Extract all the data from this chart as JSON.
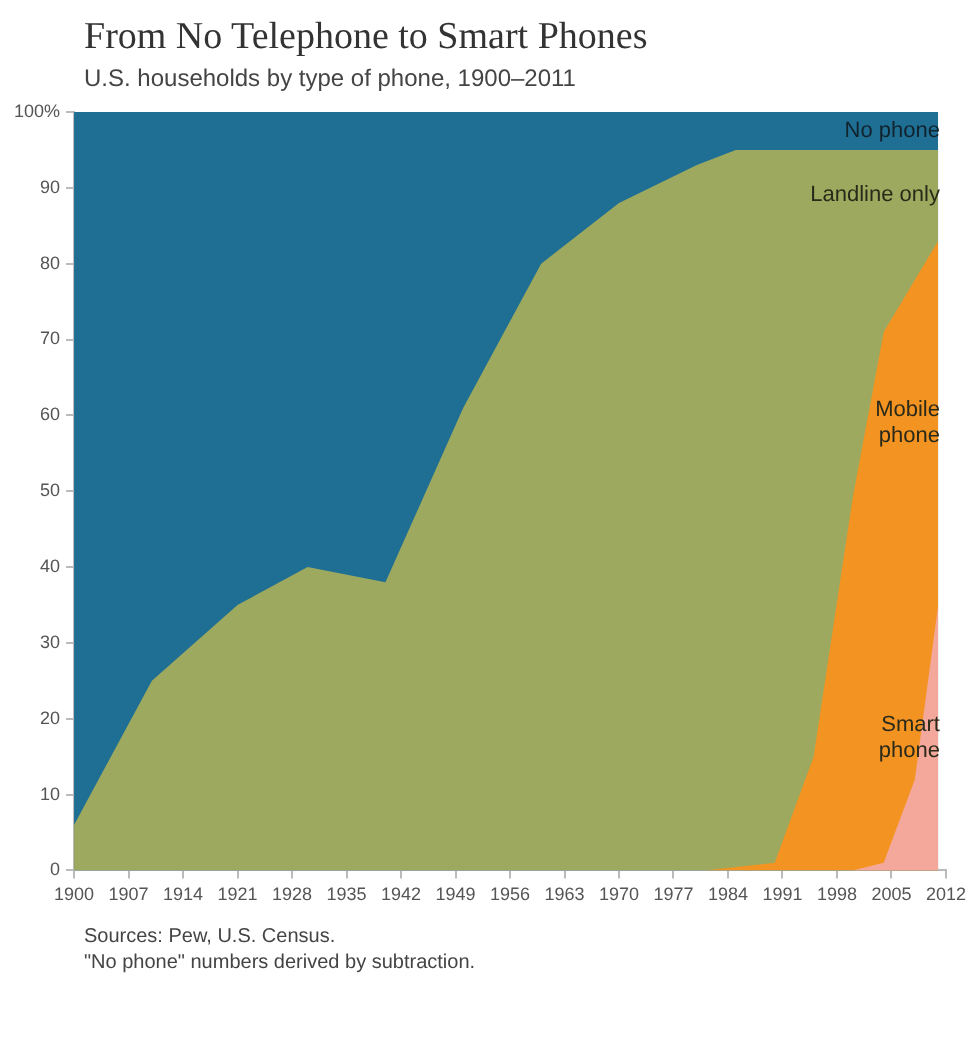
{
  "chart_data": {
    "type": "area",
    "title": "From No Telephone to Smart Phones",
    "subtitle": "U.S. households by type of phone, 1900–2011",
    "xlim": [
      1900,
      2012
    ],
    "xticks": [
      1900,
      1907,
      1914,
      1921,
      1928,
      1935,
      1942,
      1949,
      1956,
      1963,
      1970,
      1977,
      1984,
      1991,
      1998,
      2005,
      2012
    ],
    "ylim": [
      0,
      100
    ],
    "yticks": [
      0,
      10,
      20,
      30,
      40,
      50,
      60,
      70,
      80,
      90,
      {
        "value": 100,
        "label": "100%"
      }
    ],
    "grid": false,
    "legend": false,
    "series": [
      {
        "name": "No phone",
        "color": "#1f6e94",
        "x": [
          1900,
          2011
        ],
        "values": [
          100,
          100
        ]
      },
      {
        "name": "Landline only",
        "color": "#9ca95f",
        "x": [
          1900,
          1910,
          1921,
          1930,
          1940,
          1950,
          1960,
          1970,
          1980,
          1985,
          2011
        ],
        "values": [
          6,
          25,
          35,
          40,
          38,
          61,
          80,
          88,
          93,
          95,
          95
        ]
      },
      {
        "name": "Mobile phone",
        "color": "#f39321",
        "x": [
          1981,
          1990,
          1995,
          2000,
          2004,
          2011
        ],
        "values": [
          0,
          1,
          15,
          49,
          71,
          83
        ]
      },
      {
        "name": "Smart phone",
        "color": "#f4a89c",
        "x": [
          2000,
          2004,
          2008,
          2011
        ],
        "values": [
          0,
          1,
          12,
          35
        ]
      }
    ],
    "annotations": [
      "Sources: Pew, U.S. Census.",
      "\"No phone\" numbers derived by subtraction."
    ]
  }
}
